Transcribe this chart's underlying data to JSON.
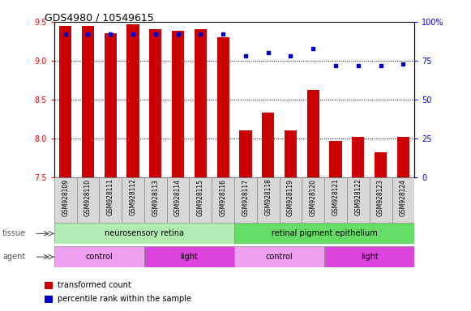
{
  "title": "GDS4980 / 10549615",
  "samples": [
    "GSM928109",
    "GSM928110",
    "GSM928111",
    "GSM928112",
    "GSM928113",
    "GSM928114",
    "GSM928115",
    "GSM928116",
    "GSM928117",
    "GSM928118",
    "GSM928119",
    "GSM928120",
    "GSM928121",
    "GSM928122",
    "GSM928123",
    "GSM928124"
  ],
  "transformed_count": [
    9.45,
    9.45,
    9.35,
    9.47,
    9.4,
    9.38,
    9.4,
    9.3,
    8.1,
    8.33,
    8.1,
    8.62,
    7.97,
    8.02,
    7.82,
    8.02
  ],
  "percentile_rank": [
    92,
    92,
    92,
    92,
    92,
    92,
    92,
    92,
    78,
    80,
    78,
    83,
    72,
    72,
    72,
    73
  ],
  "bar_color": "#cc0000",
  "dot_color": "#0000cc",
  "ylim_left": [
    7.5,
    9.5
  ],
  "ylim_right": [
    0,
    100
  ],
  "yticks_left": [
    7.5,
    8.0,
    8.5,
    9.0,
    9.5
  ],
  "yticks_right": [
    0,
    25,
    50,
    75,
    100
  ],
  "ytick_labels_right": [
    "0",
    "25",
    "50",
    "75",
    "100%"
  ],
  "grid_values": [
    8.0,
    8.5,
    9.0
  ],
  "bar_bottom": 7.5,
  "tissue_groups": [
    {
      "label": "neurosensory retina",
      "start": 0,
      "end": 8,
      "color": "#b3ecb3"
    },
    {
      "label": "retinal pigment epithelium",
      "start": 8,
      "end": 16,
      "color": "#66dd66"
    }
  ],
  "agent_groups": [
    {
      "label": "control",
      "start": 0,
      "end": 4,
      "color": "#f0a0f0"
    },
    {
      "label": "light",
      "start": 4,
      "end": 8,
      "color": "#dd44dd"
    },
    {
      "label": "control",
      "start": 8,
      "end": 12,
      "color": "#f0a0f0"
    },
    {
      "label": "light",
      "start": 12,
      "end": 16,
      "color": "#dd44dd"
    }
  ],
  "legend_red_label": "transformed count",
  "legend_blue_label": "percentile rank within the sample",
  "bar_width": 0.55
}
